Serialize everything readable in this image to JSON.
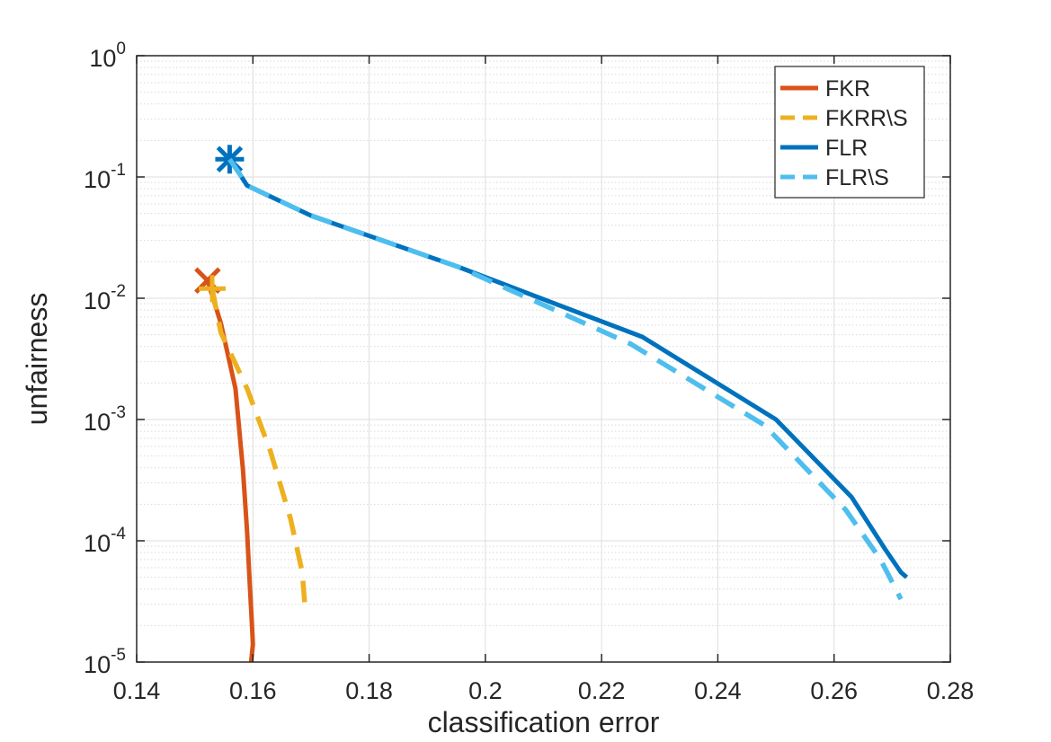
{
  "chart_data": {
    "type": "line",
    "title": "",
    "xlabel": "classification error",
    "ylabel": "unfairness",
    "xlim": [
      0.14,
      0.28
    ],
    "ylim": [
      1e-05,
      1
    ],
    "yscale": "log",
    "grid": true,
    "minor_grid": true,
    "legend_position": "top-right",
    "x_ticks": [
      0.14,
      0.16,
      0.18,
      0.2,
      0.22,
      0.24,
      0.26,
      0.28
    ],
    "x_tick_labels": [
      "0.14",
      "0.16",
      "0.18",
      "0.2",
      "0.22",
      "0.24",
      "0.26",
      "0.28"
    ],
    "y_ticks": [
      {
        "value": 1,
        "base": "10",
        "exp": "0"
      },
      {
        "value": 0.1,
        "base": "10",
        "exp": "-1"
      },
      {
        "value": 0.01,
        "base": "10",
        "exp": "-2"
      },
      {
        "value": 0.001,
        "base": "10",
        "exp": "-3"
      },
      {
        "value": 0.0001,
        "base": "10",
        "exp": "-4"
      },
      {
        "value": 1e-05,
        "base": "10",
        "exp": "-5"
      }
    ],
    "series": [
      {
        "name": "FKR",
        "color": "#D95319",
        "style": "solid",
        "marker": "x",
        "x": [
          0.1522,
          0.1545,
          0.157,
          0.1583,
          0.159,
          0.1595,
          0.1598,
          0.16,
          0.1597
        ],
        "y": [
          0.014,
          0.0062,
          0.0018,
          0.00038,
          0.00012,
          4e-05,
          2.2e-05,
          1.4e-05,
          1e-05
        ]
      },
      {
        "name": "FKRR\\S",
        "color": "#EDB120",
        "style": "dashed",
        "marker": "+",
        "x": [
          0.153,
          0.1545,
          0.159,
          0.163,
          0.1665,
          0.1685,
          0.169
        ],
        "y": [
          0.012,
          0.0052,
          0.0018,
          0.00055,
          0.00015,
          5.5e-05,
          2.7e-05
        ]
      },
      {
        "name": "FLR",
        "color": "#0072BD",
        "style": "solid",
        "marker": "*",
        "x": [
          0.156,
          0.1575,
          0.159,
          0.17,
          0.1955,
          0.227,
          0.25,
          0.263,
          0.2688,
          0.2715,
          0.2725
        ],
        "y": [
          0.14,
          0.11,
          0.085,
          0.048,
          0.018,
          0.0048,
          0.001,
          0.00023,
          8.5e-05,
          5.5e-05,
          5e-05
        ]
      },
      {
        "name": "FLR\\S",
        "color": "#4DBEEE",
        "style": "dashed",
        "marker": "none",
        "x": [
          0.156,
          0.1575,
          0.159,
          0.17,
          0.1955,
          0.225,
          0.248,
          0.262,
          0.268,
          0.2715
        ],
        "y": [
          0.14,
          0.11,
          0.085,
          0.048,
          0.018,
          0.0042,
          0.0009,
          0.00018,
          7e-05,
          3.3e-05
        ]
      }
    ]
  }
}
